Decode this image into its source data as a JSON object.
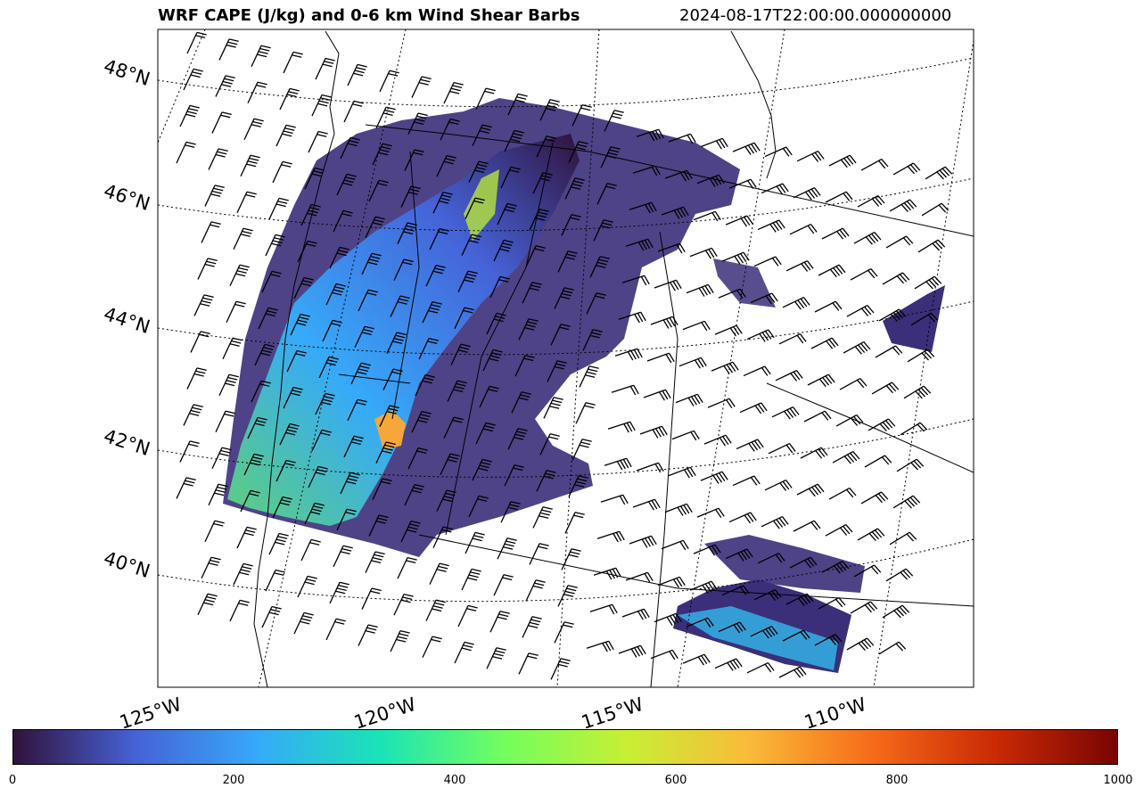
{
  "title": "WRF CAPE (J/kg) and 0-6 km Wind Shear Barbs",
  "timestamp": "2024-08-17T22:00:00.000000000",
  "lat_labels": [
    "48°N",
    "46°N",
    "44°N",
    "42°N",
    "40°N"
  ],
  "lon_labels": [
    "125°W",
    "120°W",
    "115°W",
    "110°W"
  ],
  "colorbar": {
    "min": 0,
    "max": 1000,
    "ticks": [
      "0",
      "200",
      "400",
      "600",
      "800",
      "1000"
    ],
    "colormap": [
      "#30123b",
      "#4662d7",
      "#36aaf9",
      "#1ae4b6",
      "#72fe5e",
      "#c8ef34",
      "#faba39",
      "#f66b19",
      "#ca2a04",
      "#7a0403"
    ]
  },
  "colors": {
    "cape_low": "#30123b",
    "cape_mid": "#36aaf9",
    "cape_high": "#c8ef34",
    "barb": "#000000"
  }
}
